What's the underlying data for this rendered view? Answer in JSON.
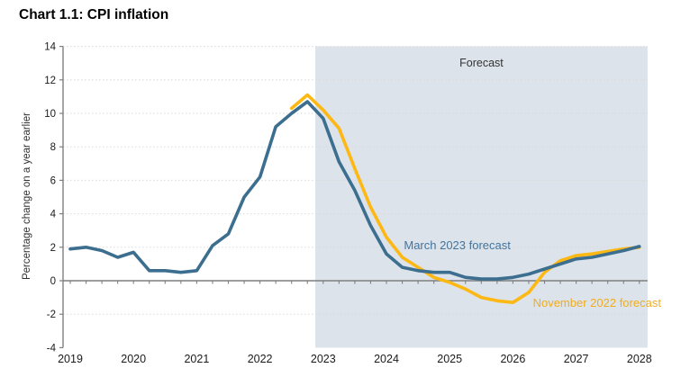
{
  "title": "Chart 1.1: CPI inflation",
  "colors": {
    "march_line": "#3c6e8f",
    "november_line": "#fdb813",
    "march_text": "#44749c",
    "november_text": "#f0ad1e",
    "forecast_shade": "#dce3eb",
    "grid": "#d9d9d9",
    "axis": "#7f7f7f",
    "tick_text": "#1a1a1a",
    "forecast_text": "#333333"
  },
  "chart_data": {
    "type": "line",
    "title": "Chart 1.1: CPI inflation",
    "xlabel": "",
    "ylabel": "Percentage change on a year earlier",
    "ylim": [
      -4,
      14
    ],
    "yticks": [
      14,
      12,
      10,
      8,
      6,
      4,
      2,
      0,
      -2,
      -4
    ],
    "xticks": [
      2019,
      2020,
      2021,
      2022,
      2023,
      2024,
      2025,
      2026,
      2027,
      2028
    ],
    "grid": "dotted horizontal",
    "legend": "inline annotations",
    "x_start": 2019.0,
    "x_step": 0.25,
    "x_unit": "quarterly, year decimals",
    "series": [
      {
        "name": "March 2023 forecast",
        "values": [
          1.9,
          2.0,
          1.8,
          1.4,
          1.7,
          0.6,
          0.6,
          0.5,
          0.6,
          2.1,
          2.8,
          5.0,
          6.2,
          9.2,
          10.0,
          10.7,
          9.7,
          7.1,
          5.4,
          3.3,
          1.6,
          0.8,
          0.6,
          0.5,
          0.5,
          0.2,
          0.1,
          0.1,
          0.2,
          0.4,
          0.7,
          1.0,
          1.3,
          1.4,
          1.6,
          1.8,
          2.05
        ]
      },
      {
        "name": "November 2022 forecast",
        "values": [
          null,
          null,
          null,
          null,
          null,
          null,
          null,
          null,
          null,
          null,
          null,
          null,
          null,
          null,
          10.3,
          11.1,
          10.2,
          9.1,
          6.7,
          4.4,
          2.6,
          1.4,
          0.8,
          0.2,
          -0.1,
          -0.5,
          -1.0,
          -1.2,
          -1.3,
          -0.7,
          0.5,
          1.2,
          1.5,
          1.6,
          1.75,
          1.9,
          2.0
        ]
      }
    ],
    "forecast_region": {
      "label": "Forecast",
      "x_start": 2022.875,
      "x_end": 2028.13
    },
    "annotations": [
      {
        "text": "March 2023 forecast",
        "x": 2025.12,
        "y": 2.1,
        "series": "march"
      },
      {
        "text": "November 2022 forecast",
        "x": 2027.33,
        "y": -1.35,
        "series": "november"
      }
    ]
  }
}
